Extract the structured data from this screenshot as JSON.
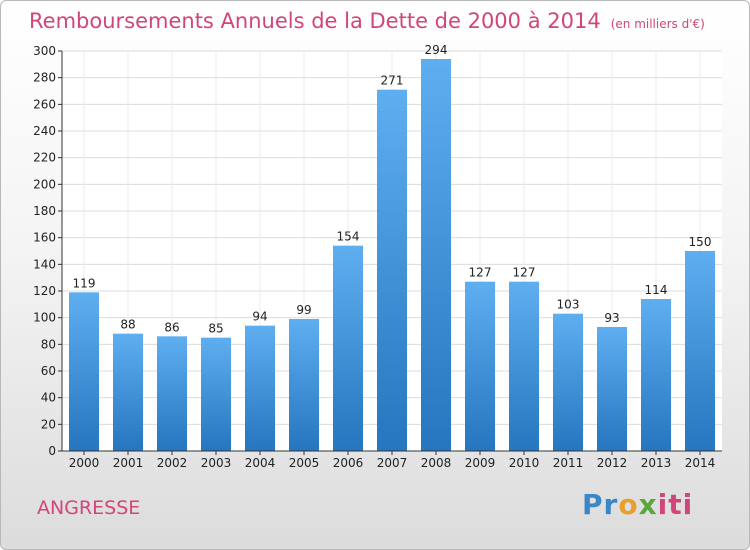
{
  "chart_data": {
    "type": "bar",
    "title": "Remboursements Annuels de la Dette de 2000 à 2014",
    "subtitle": "(en milliers d'€)",
    "xlabel": "",
    "ylabel": "",
    "categories": [
      "2000",
      "2001",
      "2002",
      "2003",
      "2004",
      "2005",
      "2006",
      "2007",
      "2008",
      "2009",
      "2010",
      "2011",
      "2012",
      "2013",
      "2014"
    ],
    "values": [
      119,
      88,
      86,
      85,
      94,
      99,
      154,
      271,
      294,
      127,
      127,
      103,
      93,
      114,
      150
    ],
    "ylim": [
      0,
      300
    ],
    "yticks": [
      0,
      20,
      40,
      60,
      80,
      100,
      120,
      140,
      160,
      180,
      200,
      220,
      240,
      260,
      280,
      300
    ],
    "grid": true,
    "legend": "none",
    "bar_color": "#3b8fd6"
  },
  "footer": {
    "commune": "ANGRESSE",
    "logo": "Proxiti"
  },
  "colors": {
    "accent": "#d2457a"
  }
}
